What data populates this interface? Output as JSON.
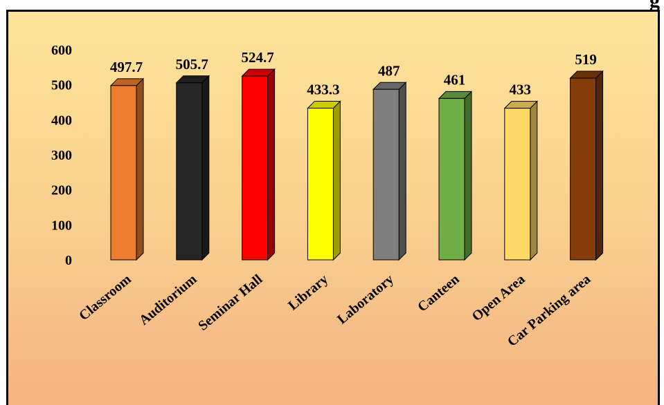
{
  "top_partial_text": "g",
  "chart_data": {
    "type": "bar",
    "categories": [
      "Classroom",
      "Auditorium",
      "Seminar Hall",
      "Library",
      "Laboratory",
      "Canteen",
      "Open Area",
      "Car Parking area"
    ],
    "values": [
      497.7,
      505.7,
      524.7,
      433.3,
      487,
      461,
      433,
      519
    ],
    "value_labels": [
      "497.7",
      "505.7",
      "524.7",
      "433.3",
      "487",
      "461",
      "433",
      "519"
    ],
    "ylim": [
      0,
      600
    ],
    "yticks": [
      "0",
      "100",
      "200",
      "300",
      "400",
      "500",
      "600"
    ],
    "title": "",
    "xlabel": "",
    "ylabel": "",
    "grid": false,
    "bar_colors": [
      "#ed7d31",
      "#262626",
      "#ff0000",
      "#ffff00",
      "#7f7f7f",
      "#70ad47",
      "#ffd966",
      "#843c0c"
    ],
    "background_colors": [
      "#fde49a",
      "#f4b283"
    ]
  }
}
